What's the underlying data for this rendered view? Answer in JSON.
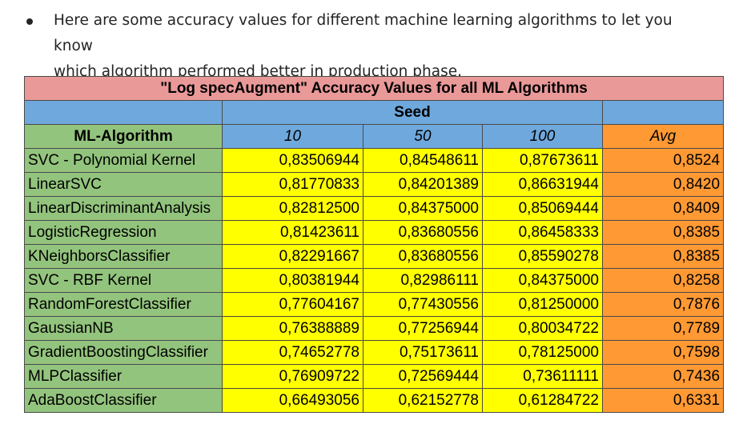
{
  "intro": {
    "line1": "Here are some accuracy values for different machine learning algorithms to let you know",
    "line2": "which algorithm performed better in production phase."
  },
  "table": {
    "title": "\"Log specAugment\" Accuracy Values for all ML Algorithms",
    "seed_label": "Seed",
    "algo_header": "ML-Algorithm",
    "seed_columns": [
      "10",
      "50",
      "100"
    ],
    "avg_header": "Avg",
    "colors": {
      "title_bg": "#ea9999",
      "header_bg": "#6fa8dc",
      "algo_bg": "#93c47d",
      "value_bg": "#ffff00",
      "avg_bg": "#ff9933"
    },
    "rows": [
      {
        "algorithm": "SVC - Polynomial Kernel",
        "v10": "0,83506944",
        "v50": "0,84548611",
        "v100": "0,87673611",
        "avg": "0,8524"
      },
      {
        "algorithm": "LinearSVC",
        "v10": "0,81770833",
        "v50": "0,84201389",
        "v100": "0,86631944",
        "avg": "0,8420"
      },
      {
        "algorithm": "LinearDiscriminantAnalysis",
        "v10": "0,82812500",
        "v50": "0,84375000",
        "v100": "0,85069444",
        "avg": "0,8409"
      },
      {
        "algorithm": "LogisticRegression",
        "v10": "0,81423611",
        "v50": "0,83680556",
        "v100": "0,86458333",
        "avg": "0,8385"
      },
      {
        "algorithm": "KNeighborsClassifier",
        "v10": "0,82291667",
        "v50": "0,83680556",
        "v100": "0,85590278",
        "avg": "0,8385"
      },
      {
        "algorithm": "SVC - RBF Kernel",
        "v10": "0,80381944",
        "v50": "0,82986111",
        "v100": "0,84375000",
        "avg": "0,8258"
      },
      {
        "algorithm": "RandomForestClassifier",
        "v10": "0,77604167",
        "v50": "0,77430556",
        "v100": "0,81250000",
        "avg": "0,7876"
      },
      {
        "algorithm": "GaussianNB",
        "v10": "0,76388889",
        "v50": "0,77256944",
        "v100": "0,80034722",
        "avg": "0,7789"
      },
      {
        "algorithm": "GradientBoostingClassifier",
        "v10": "0,74652778",
        "v50": "0,75173611",
        "v100": "0,78125000",
        "avg": "0,7598"
      },
      {
        "algorithm": "MLPClassifier",
        "v10": "0,76909722",
        "v50": "0,72569444",
        "v100": "0,73611111",
        "avg": "0,7436"
      },
      {
        "algorithm": "AdaBoostClassifier",
        "v10": "0,66493056",
        "v50": "0,62152778",
        "v100": "0,61284722",
        "avg": "0,6331"
      }
    ]
  }
}
